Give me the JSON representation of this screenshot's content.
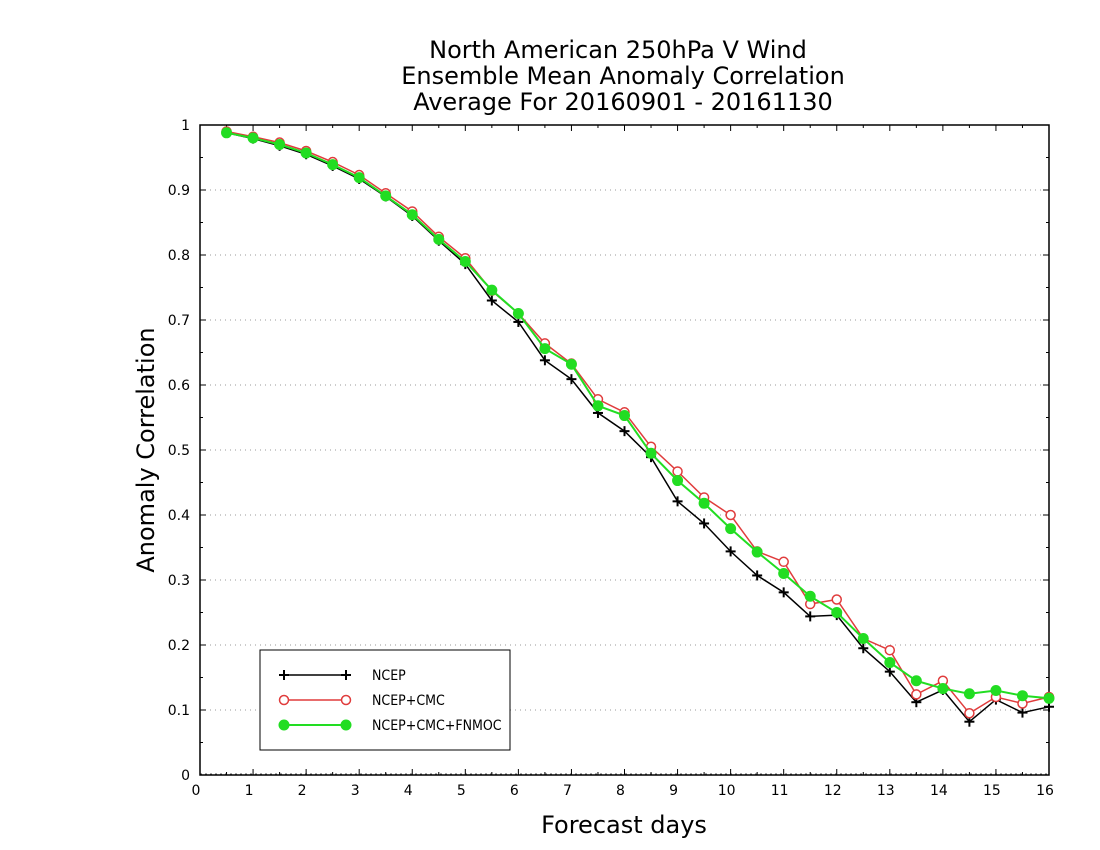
{
  "chart_data": {
    "type": "line",
    "title": [
      "North American 250hPa V Wind",
      "Ensemble Mean Anomaly Correlation",
      "Average For 20160901 - 20161130"
    ],
    "xlabel": "Forecast days",
    "ylabel": "Anomaly Correlation",
    "xlim": [
      0,
      16
    ],
    "ylim": [
      0,
      1
    ],
    "xticks": [
      "0",
      "1",
      "2",
      "3",
      "4",
      "5",
      "6",
      "7",
      "8",
      "9",
      "10",
      "11",
      "12",
      "13",
      "14",
      "15",
      "16"
    ],
    "yticks": [
      "0",
      "0.1",
      "0.2",
      "0.3",
      "0.4",
      "0.5",
      "0.6",
      "0.7",
      "0.8",
      "0.9",
      "1"
    ],
    "grid": "dotted horizontal",
    "legend_position": "bottom-left",
    "x": [
      0.5,
      1,
      1.5,
      2,
      2.5,
      3,
      3.5,
      4,
      4.5,
      5,
      5.5,
      6,
      6.5,
      7,
      7.5,
      8,
      8.5,
      9,
      9.5,
      10,
      10.5,
      11,
      11.5,
      12,
      12.5,
      13,
      13.5,
      14,
      14.5,
      15,
      15.5,
      16
    ],
    "series": [
      {
        "name": "NCEP",
        "color": "#000000",
        "marker": "plus",
        "values": [
          0.988,
          0.979,
          0.968,
          0.955,
          0.937,
          0.917,
          0.89,
          0.86,
          0.822,
          0.786,
          0.73,
          0.697,
          0.638,
          0.609,
          0.557,
          0.529,
          0.489,
          0.421,
          0.387,
          0.344,
          0.307,
          0.281,
          0.244,
          0.246,
          0.195,
          0.159,
          0.112,
          0.131,
          0.082,
          0.116,
          0.096,
          0.105
        ]
      },
      {
        "name": "NCEP+CMC",
        "color": "#e03c3c",
        "marker": "open-circle",
        "values": [
          0.99,
          0.982,
          0.973,
          0.96,
          0.943,
          0.923,
          0.895,
          0.867,
          0.828,
          0.795,
          0.745,
          0.71,
          0.664,
          0.633,
          0.578,
          0.558,
          0.505,
          0.467,
          0.427,
          0.4,
          0.344,
          0.328,
          0.263,
          0.27,
          0.21,
          0.192,
          0.124,
          0.145,
          0.095,
          0.12,
          0.11,
          0.12
        ]
      },
      {
        "name": "NCEP+CMC+FNMOC",
        "color": "#22dd22",
        "marker": "filled-circle",
        "values": [
          0.988,
          0.98,
          0.97,
          0.957,
          0.939,
          0.919,
          0.891,
          0.862,
          0.824,
          0.79,
          0.746,
          0.71,
          0.656,
          0.632,
          0.568,
          0.553,
          0.495,
          0.453,
          0.418,
          0.379,
          0.343,
          0.31,
          0.275,
          0.25,
          0.21,
          0.173,
          0.145,
          0.133,
          0.125,
          0.13,
          0.122,
          0.118
        ]
      }
    ]
  }
}
